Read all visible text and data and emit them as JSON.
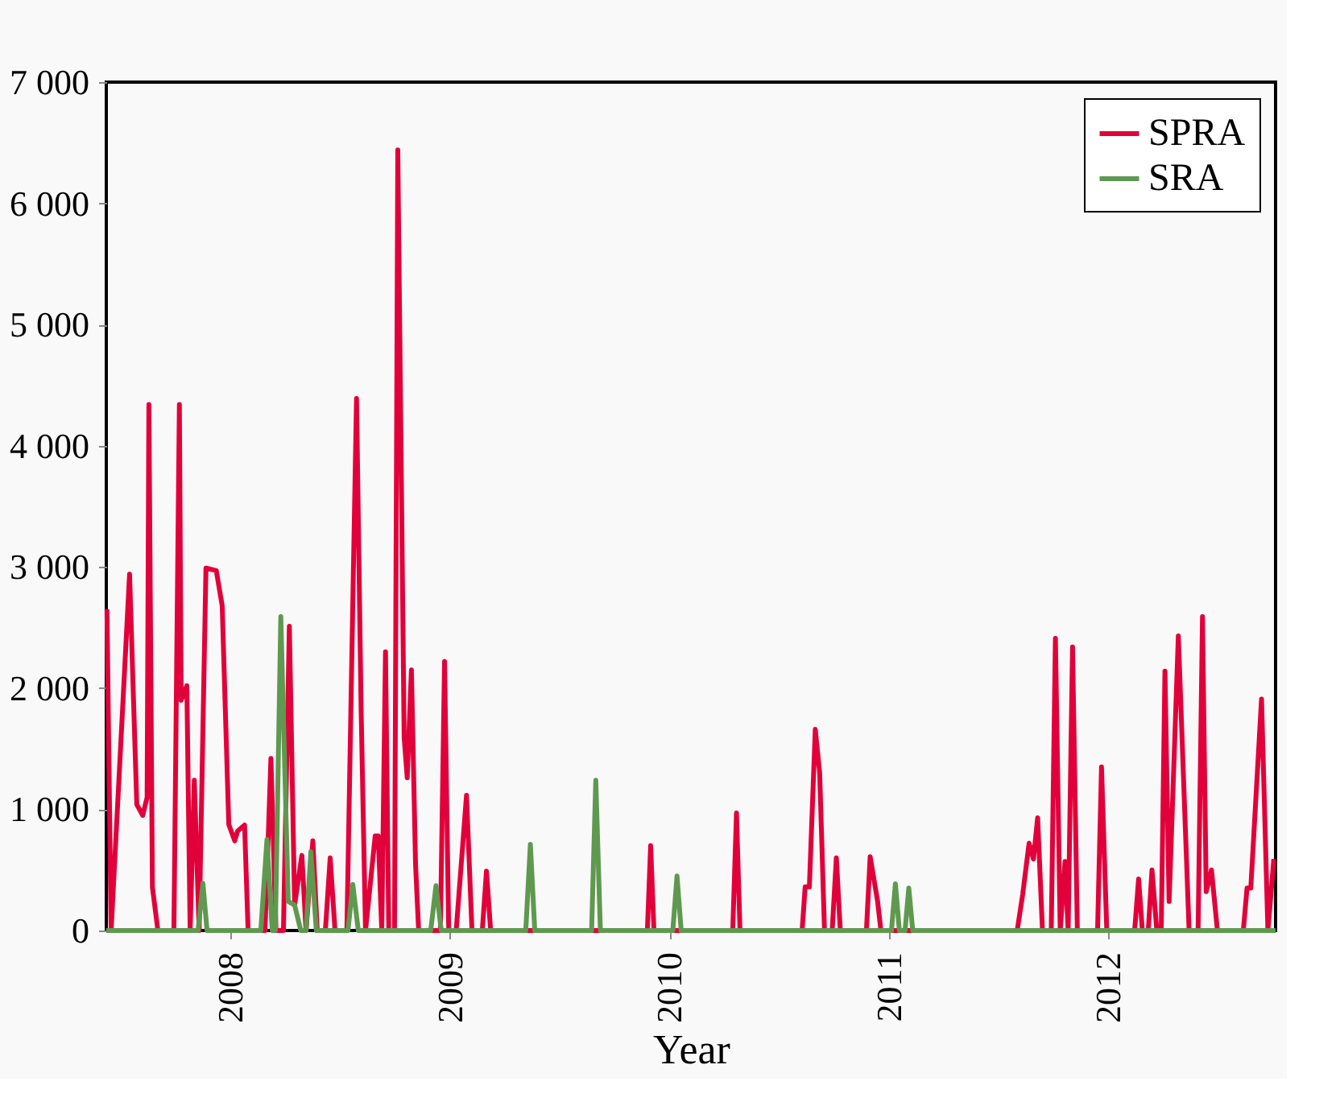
{
  "chart_data": {
    "type": "line",
    "xlabel": "Year",
    "xlim": [
      2007.435,
      2012.762
    ],
    "xticks": [
      2008,
      2009,
      2010,
      2011,
      2012
    ],
    "ylim": [
      0,
      7000
    ],
    "yticks": [
      0,
      {
        "value": 1000,
        "label": "1 000"
      },
      {
        "value": 2000,
        "label": "2 000"
      },
      {
        "value": 3000,
        "label": "3 000"
      },
      {
        "value": 4000,
        "label": "4 000"
      },
      {
        "value": 5000,
        "label": "5 000"
      },
      {
        "value": 6000,
        "label": "6 000"
      },
      {
        "value": 7000,
        "label": "7 000"
      }
    ],
    "grid": false,
    "legend": "top right",
    "marker": "none",
    "line_style": "solid",
    "series": [
      {
        "name": "SPRA",
        "color": "#e2003a",
        "x": [
          2007.438,
          2007.457,
          2007.541,
          2007.574,
          2007.601,
          2007.621,
          2007.629,
          2007.645,
          2007.67,
          2007.743,
          2007.768,
          2007.776,
          2007.802,
          2007.817,
          2007.836,
          2007.858,
          2007.889,
          2007.936,
          2007.963,
          2007.993,
          2008.02,
          2008.033,
          2008.065,
          2008.081,
          2008.158,
          2008.185,
          2008.208,
          2008.242,
          2008.269,
          2008.293,
          2008.326,
          2008.345,
          2008.376,
          2008.396,
          2008.433,
          2008.455,
          2008.477,
          2008.531,
          2008.575,
          2008.596,
          2008.616,
          2008.66,
          2008.674,
          2008.69,
          2008.707,
          2008.722,
          2008.748,
          2008.763,
          2008.792,
          2008.806,
          2008.825,
          2008.844,
          2008.858,
          2008.957,
          2008.976,
          2008.995,
          2009.029,
          2009.076,
          2009.101,
          2009.148,
          2009.167,
          2009.186,
          2009.9,
          2009.915,
          2009.93,
          2010.289,
          2010.306,
          2010.322,
          2010.605,
          2010.619,
          2010.638,
          2010.665,
          2010.685,
          2010.707,
          2010.742,
          2010.761,
          2010.779,
          2010.898,
          2010.915,
          2010.949,
          2010.964,
          2011.585,
          2011.61,
          2011.639,
          2011.659,
          2011.678,
          2011.7,
          2011.74,
          2011.759,
          2011.781,
          2011.803,
          2011.817,
          2011.837,
          2011.859,
          2011.951,
          2011.969,
          2011.993,
          2012.12,
          2012.138,
          2012.155,
          2012.182,
          2012.199,
          2012.221,
          2012.241,
          2012.258,
          2012.277,
          2012.319,
          2012.368,
          2012.409,
          2012.429,
          2012.446,
          2012.47,
          2012.497,
          2012.615,
          2012.632,
          2012.649,
          2012.698,
          2012.727,
          2012.754
        ],
        "values": [
          2650,
          0,
          2940,
          1040,
          950,
          1100,
          4340,
          360,
          0,
          0,
          4340,
          1900,
          2020,
          0,
          1240,
          0,
          2990,
          2970,
          2680,
          875,
          740,
          820,
          870,
          0,
          0,
          1420,
          0,
          0,
          2510,
          210,
          620,
          0,
          740,
          0,
          0,
          600,
          0,
          0,
          4390,
          1820,
          0,
          780,
          780,
          0,
          2300,
          0,
          0,
          6440,
          1590,
          1260,
          2150,
          540,
          0,
          0,
          2220,
          0,
          0,
          1115,
          0,
          0,
          490,
          0,
          0,
          700,
          0,
          0,
          970,
          0,
          0,
          360,
          360,
          1660,
          1300,
          0,
          0,
          600,
          0,
          0,
          610,
          240,
          0,
          0,
          300,
          720,
          590,
          930,
          0,
          0,
          2410,
          0,
          570,
          0,
          2340,
          0,
          0,
          1350,
          0,
          0,
          425,
          0,
          0,
          500,
          0,
          0,
          2140,
          240,
          2430,
          0,
          0,
          2590,
          320,
          500,
          0,
          0,
          350,
          350,
          1910,
          0,
          590
        ]
      },
      {
        "name": "SRA",
        "color": "#5e994f",
        "x": [
          2007.435,
          2007.853,
          2007.875,
          2007.894,
          2008.139,
          2008.167,
          2008.191,
          2008.205,
          2008.23,
          2008.264,
          2008.293,
          2008.321,
          2008.345,
          2008.367,
          2008.392,
          2008.536,
          2008.558,
          2008.583,
          2008.913,
          2008.937,
          2008.961,
          2009.346,
          2009.367,
          2009.387,
          2009.646,
          2009.665,
          2009.686,
          2010.016,
          2010.035,
          2010.054,
          2011.012,
          2011.03,
          2011.048,
          2011.074,
          2011.091,
          2011.109,
          2012.762
        ],
        "values": [
          0,
          0,
          390,
          0,
          0,
          750,
          0,
          0,
          2590,
          240,
          210,
          0,
          0,
          650,
          0,
          0,
          380,
          0,
          0,
          370,
          0,
          0,
          710,
          0,
          0,
          1240,
          0,
          0,
          450,
          0,
          0,
          385,
          0,
          0,
          350,
          0,
          0
        ]
      }
    ]
  }
}
